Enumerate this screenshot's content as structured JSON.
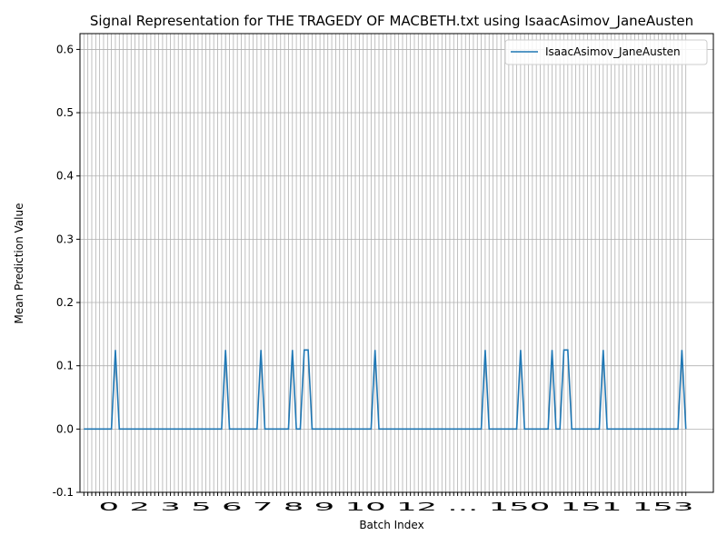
{
  "chart_data": {
    "type": "line",
    "title": "Signal Representation for THE TRAGEDY OF MACBETH.txt using IsaacAsimov_JaneAusten",
    "xlabel": "Batch Index",
    "ylabel": "Mean Prediction Value",
    "xlim": [
      -1,
      160
    ],
    "ylim": [
      -0.1,
      0.625
    ],
    "yticks": [
      -0.1,
      0.0,
      0.1,
      0.2,
      0.3,
      0.4,
      0.5,
      0.6
    ],
    "grid": true,
    "legend": "top-right",
    "x_tick_count": 154,
    "x_tick_labels_text": "0 2 3 5 6 7 8 9 10 12 ... 150 151 153",
    "series": [
      {
        "name": "IsaacAsimov_JaneAusten",
        "color": "#1f77b4",
        "peaks": [
          8,
          36,
          45,
          53,
          56,
          57,
          74,
          102,
          111,
          119,
          122,
          123,
          132,
          152
        ],
        "peak_value": 0.125,
        "baseline_value": 0.0,
        "x_max": 153
      }
    ]
  }
}
